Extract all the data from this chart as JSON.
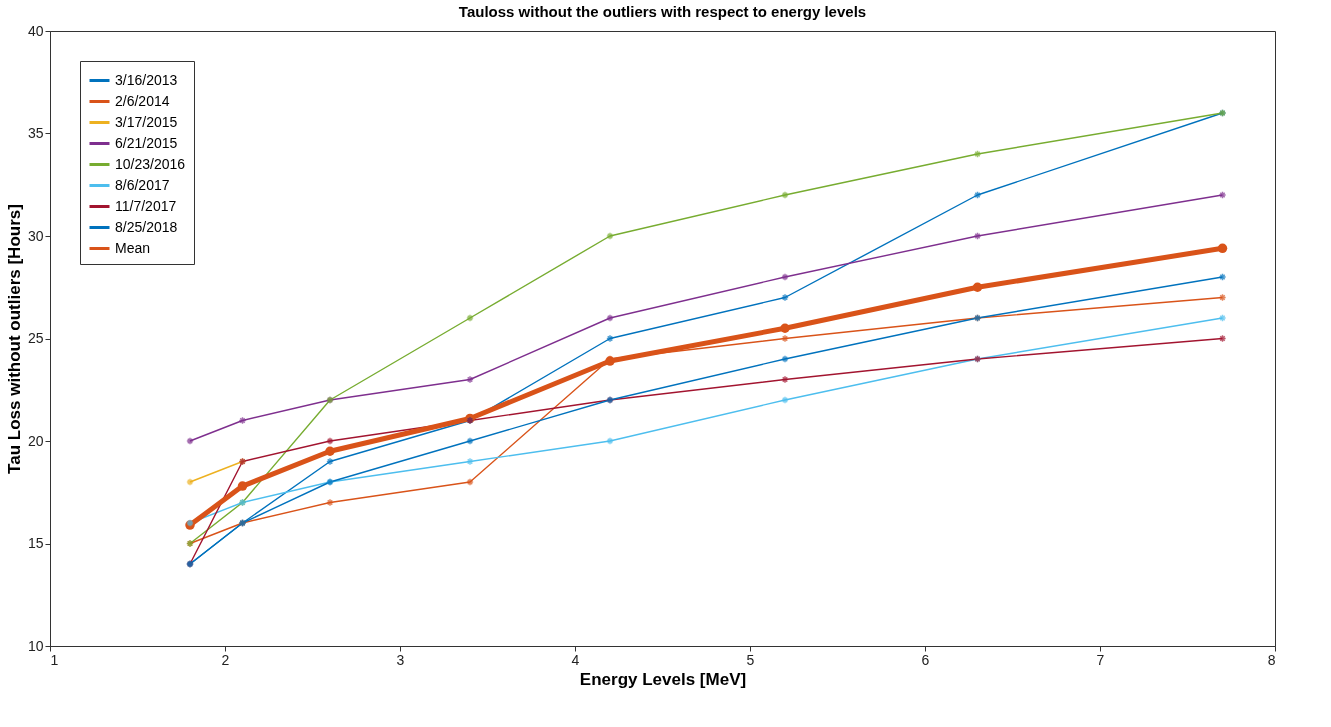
{
  "chart_data": {
    "type": "line",
    "title": "Tauloss without the outliers with respect to energy levels",
    "xlabel": "Energy Levels [MeV]",
    "ylabel": "Tau Loss without outliers [Hours]",
    "x": [
      1.8,
      2.1,
      2.6,
      3.4,
      4.2,
      5.2,
      6.3,
      7.7
    ],
    "series": [
      {
        "name": "3/16/2013",
        "color": "#0072bd",
        "marker": "cross",
        "values": [
          14,
          16,
          19,
          21,
          25,
          27,
          32,
          36
        ]
      },
      {
        "name": "2/6/2014",
        "color": "#d95319",
        "marker": "cross",
        "values": [
          15,
          16,
          17,
          18,
          24,
          25,
          26,
          27
        ]
      },
      {
        "name": "3/17/2015",
        "color": "#edb120",
        "marker": "cross",
        "values": [
          18,
          19,
          null,
          null,
          null,
          null,
          null,
          null
        ]
      },
      {
        "name": "6/21/2015",
        "color": "#7e2f8e",
        "marker": "cross",
        "values": [
          20,
          21,
          22,
          23,
          26,
          28,
          30,
          32
        ]
      },
      {
        "name": "10/23/2016",
        "color": "#77ac30",
        "marker": "cross",
        "values": [
          15,
          17,
          22,
          26,
          30,
          32,
          34,
          36
        ]
      },
      {
        "name": "8/6/2017",
        "color": "#4dbeee",
        "marker": "cross",
        "values": [
          16,
          17,
          18,
          19,
          20,
          22,
          24,
          26
        ]
      },
      {
        "name": "11/7/2017",
        "color": "#a2142f",
        "marker": "cross",
        "values": [
          14,
          19,
          20,
          21,
          22,
          23,
          24,
          25
        ]
      },
      {
        "name": "8/25/2018",
        "color": "#0072bd",
        "marker": "cross",
        "values": [
          14,
          16,
          18,
          20,
          22,
          24,
          26,
          28
        ]
      },
      {
        "name": "Mean",
        "color": "#d95319",
        "marker": "circle",
        "values": [
          15.9,
          17.8,
          19.5,
          21.1,
          23.9,
          25.5,
          27.5,
          29.4
        ]
      }
    ],
    "xlim": [
      1,
      8
    ],
    "xticks": [
      1,
      2,
      3,
      4,
      5,
      6,
      7,
      8
    ],
    "ylim": [
      10,
      40
    ],
    "yticks": [
      10,
      15,
      20,
      25,
      30,
      35,
      40
    ],
    "grid": false,
    "legend": "top left",
    "line_style": "solid"
  }
}
